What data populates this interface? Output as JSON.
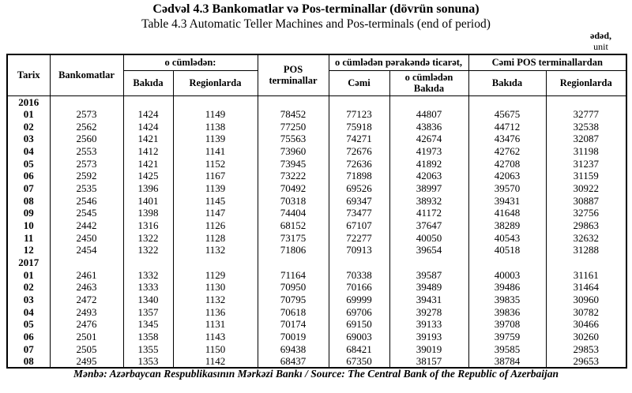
{
  "page": {
    "title_az": "Cədvəl 4.3 Bankomatlar və Pos-terminallar (dövrün sonuna)",
    "title_en": "Table 4.3 Automatic Teller Machines and Pos-terminals (end of period)",
    "unit_az": "ədəd,",
    "unit_en": "unit",
    "source": "Mənbə: Azərbaycan Respublikasının Mərkəzi Bankı / Source: The Central Bank of the Republic of Azerbaijan"
  },
  "colors": {
    "text": "#000000",
    "background": "#ffffff",
    "border": "#000000"
  },
  "table": {
    "headers": {
      "tarix": "Tarix",
      "bankomatlar": "Bankomatlar",
      "o_cumleden": "o cümlədən:",
      "bakida": "Bakıda",
      "regionlarda": "Regionlarda",
      "pos_terminallar": "POS terminallar",
      "perakende_ticaret": "o cümlədən pərakəndə ticarət,",
      "cemi": "Cəmi",
      "o_cumleden_bakida": "o cümlədən Bakıda",
      "cemi_pos_terminallardan": "Cəmi POS terminallardan",
      "pos_bakida": "Bakıda",
      "pos_regionlarda": "Regionlarda"
    },
    "groups": [
      {
        "year": "2016",
        "rows": [
          {
            "tarix": "01",
            "values": [
              2573,
              1424,
              1149,
              78452,
              77123,
              44807,
              45675,
              32777
            ]
          },
          {
            "tarix": "02",
            "values": [
              2562,
              1424,
              1138,
              77250,
              75918,
              43836,
              44712,
              32538
            ]
          },
          {
            "tarix": "03",
            "values": [
              2560,
              1421,
              1139,
              75563,
              74271,
              42674,
              43476,
              32087
            ]
          },
          {
            "tarix": "04",
            "values": [
              2553,
              1412,
              1141,
              73960,
              72676,
              41973,
              42762,
              31198
            ]
          },
          {
            "tarix": "05",
            "values": [
              2573,
              1421,
              1152,
              73945,
              72636,
              41892,
              42708,
              31237
            ]
          },
          {
            "tarix": "06",
            "values": [
              2592,
              1425,
              1167,
              73222,
              71898,
              42063,
              42063,
              31159
            ]
          },
          {
            "tarix": "07",
            "values": [
              2535,
              1396,
              1139,
              70492,
              69526,
              38997,
              39570,
              30922
            ]
          },
          {
            "tarix": "08",
            "values": [
              2546,
              1401,
              1145,
              70318,
              69347,
              38932,
              39431,
              30887
            ]
          },
          {
            "tarix": "09",
            "values": [
              2545,
              1398,
              1147,
              74404,
              73477,
              41172,
              41648,
              32756
            ]
          },
          {
            "tarix": "10",
            "values": [
              2442,
              1316,
              1126,
              68152,
              67107,
              37647,
              38289,
              29863
            ]
          },
          {
            "tarix": "11",
            "values": [
              2450,
              1322,
              1128,
              73175,
              72277,
              40050,
              40543,
              32632
            ]
          },
          {
            "tarix": "12",
            "values": [
              2454,
              1322,
              1132,
              71806,
              70913,
              39654,
              40518,
              31288
            ]
          }
        ]
      },
      {
        "year": "2017",
        "rows": [
          {
            "tarix": "01",
            "values": [
              2461,
              1332,
              1129,
              71164,
              70338,
              39587,
              40003,
              31161
            ]
          },
          {
            "tarix": "02",
            "values": [
              2463,
              1333,
              1130,
              70950,
              70166,
              39489,
              39486,
              31464
            ]
          },
          {
            "tarix": "03",
            "values": [
              2472,
              1340,
              1132,
              70795,
              69999,
              39431,
              39835,
              30960
            ]
          },
          {
            "tarix": "04",
            "values": [
              2493,
              1357,
              1136,
              70618,
              69706,
              39278,
              39836,
              30782
            ]
          },
          {
            "tarix": "05",
            "values": [
              2476,
              1345,
              1131,
              70174,
              69150,
              39133,
              39708,
              30466
            ]
          },
          {
            "tarix": "06",
            "values": [
              2501,
              1358,
              1143,
              70019,
              69003,
              39193,
              39759,
              30260
            ]
          },
          {
            "tarix": "07",
            "values": [
              2505,
              1355,
              1150,
              69438,
              68421,
              39019,
              39585,
              29853
            ]
          },
          {
            "tarix": "08",
            "values": [
              2495,
              1353,
              1142,
              68437,
              67350,
              38157,
              38784,
              29653
            ]
          }
        ]
      }
    ]
  }
}
